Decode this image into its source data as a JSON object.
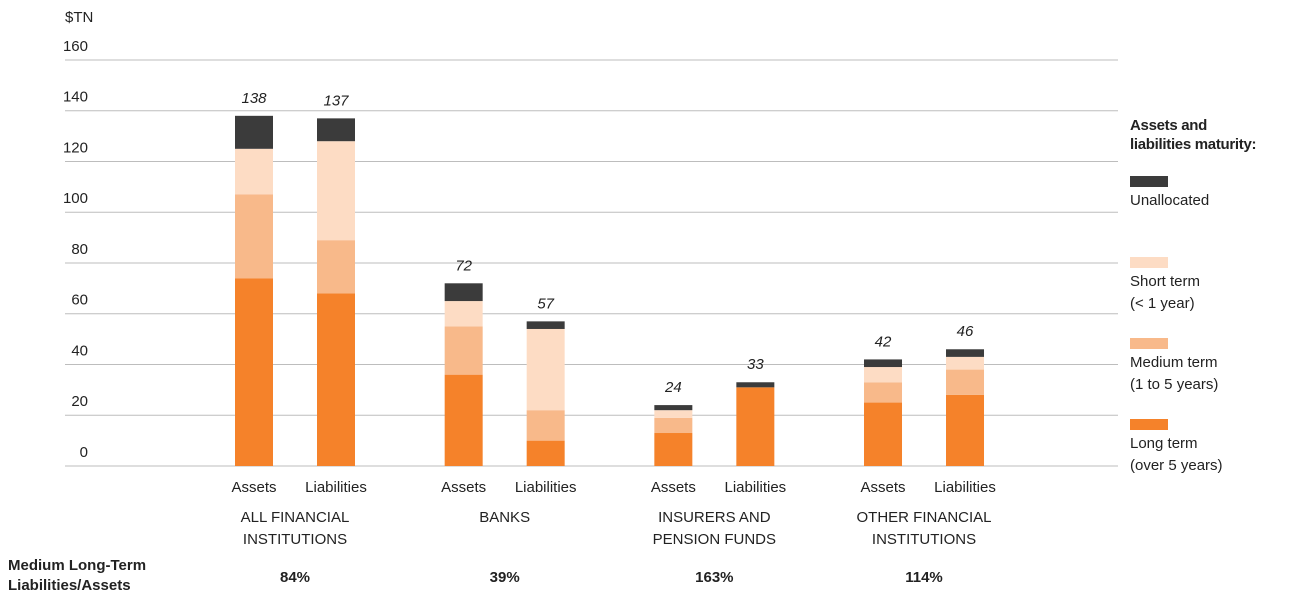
{
  "chart_data": {
    "type": "stacked-bar",
    "y_axis_label": "$TN",
    "ylim": [
      0,
      160
    ],
    "yticks": [
      0,
      20,
      40,
      60,
      80,
      100,
      120,
      140,
      160
    ],
    "grid": true,
    "categories": [
      "Assets",
      "Liabilities",
      "Assets",
      "Liabilities",
      "Assets",
      "Liabilities",
      "Assets",
      "Liabilities"
    ],
    "groups": [
      "ALL FINANCIAL\nINSTITUTIONS",
      "BANKS",
      "INSURERS AND\nPENSION FUNDS",
      "OTHER FINANCIAL\nINSTITUTIONS"
    ],
    "series": [
      {
        "name": "Long term\n(over 5 years)",
        "color": "#f5822a",
        "values": [
          74,
          68,
          36,
          10,
          13,
          31,
          25,
          28
        ]
      },
      {
        "name": "Medium term\n(1 to 5 years)",
        "color": "#f8b98a",
        "values": [
          33,
          21,
          19,
          12,
          6,
          0,
          8,
          10
        ]
      },
      {
        "name": "Short term\n(< 1 year)",
        "color": "#fddcc4",
        "values": [
          18,
          39,
          10,
          32,
          3,
          0,
          6,
          5
        ]
      },
      {
        "name": "Unallocated",
        "color": "#3b3b3b",
        "values": [
          13,
          9,
          7,
          3,
          2,
          2,
          3,
          3
        ]
      }
    ],
    "totals": [
      138,
      137,
      72,
      57,
      24,
      33,
      42,
      46
    ],
    "legend_title": "Assets and\nliabilities maturity:",
    "legend_position": "right",
    "ratios": {
      "label": "Medium Long-Term\nLiabilities/Assets",
      "values": [
        84,
        39,
        163,
        114
      ],
      "value_labels": [
        "84%",
        "39%",
        "163%",
        "114%"
      ]
    }
  }
}
